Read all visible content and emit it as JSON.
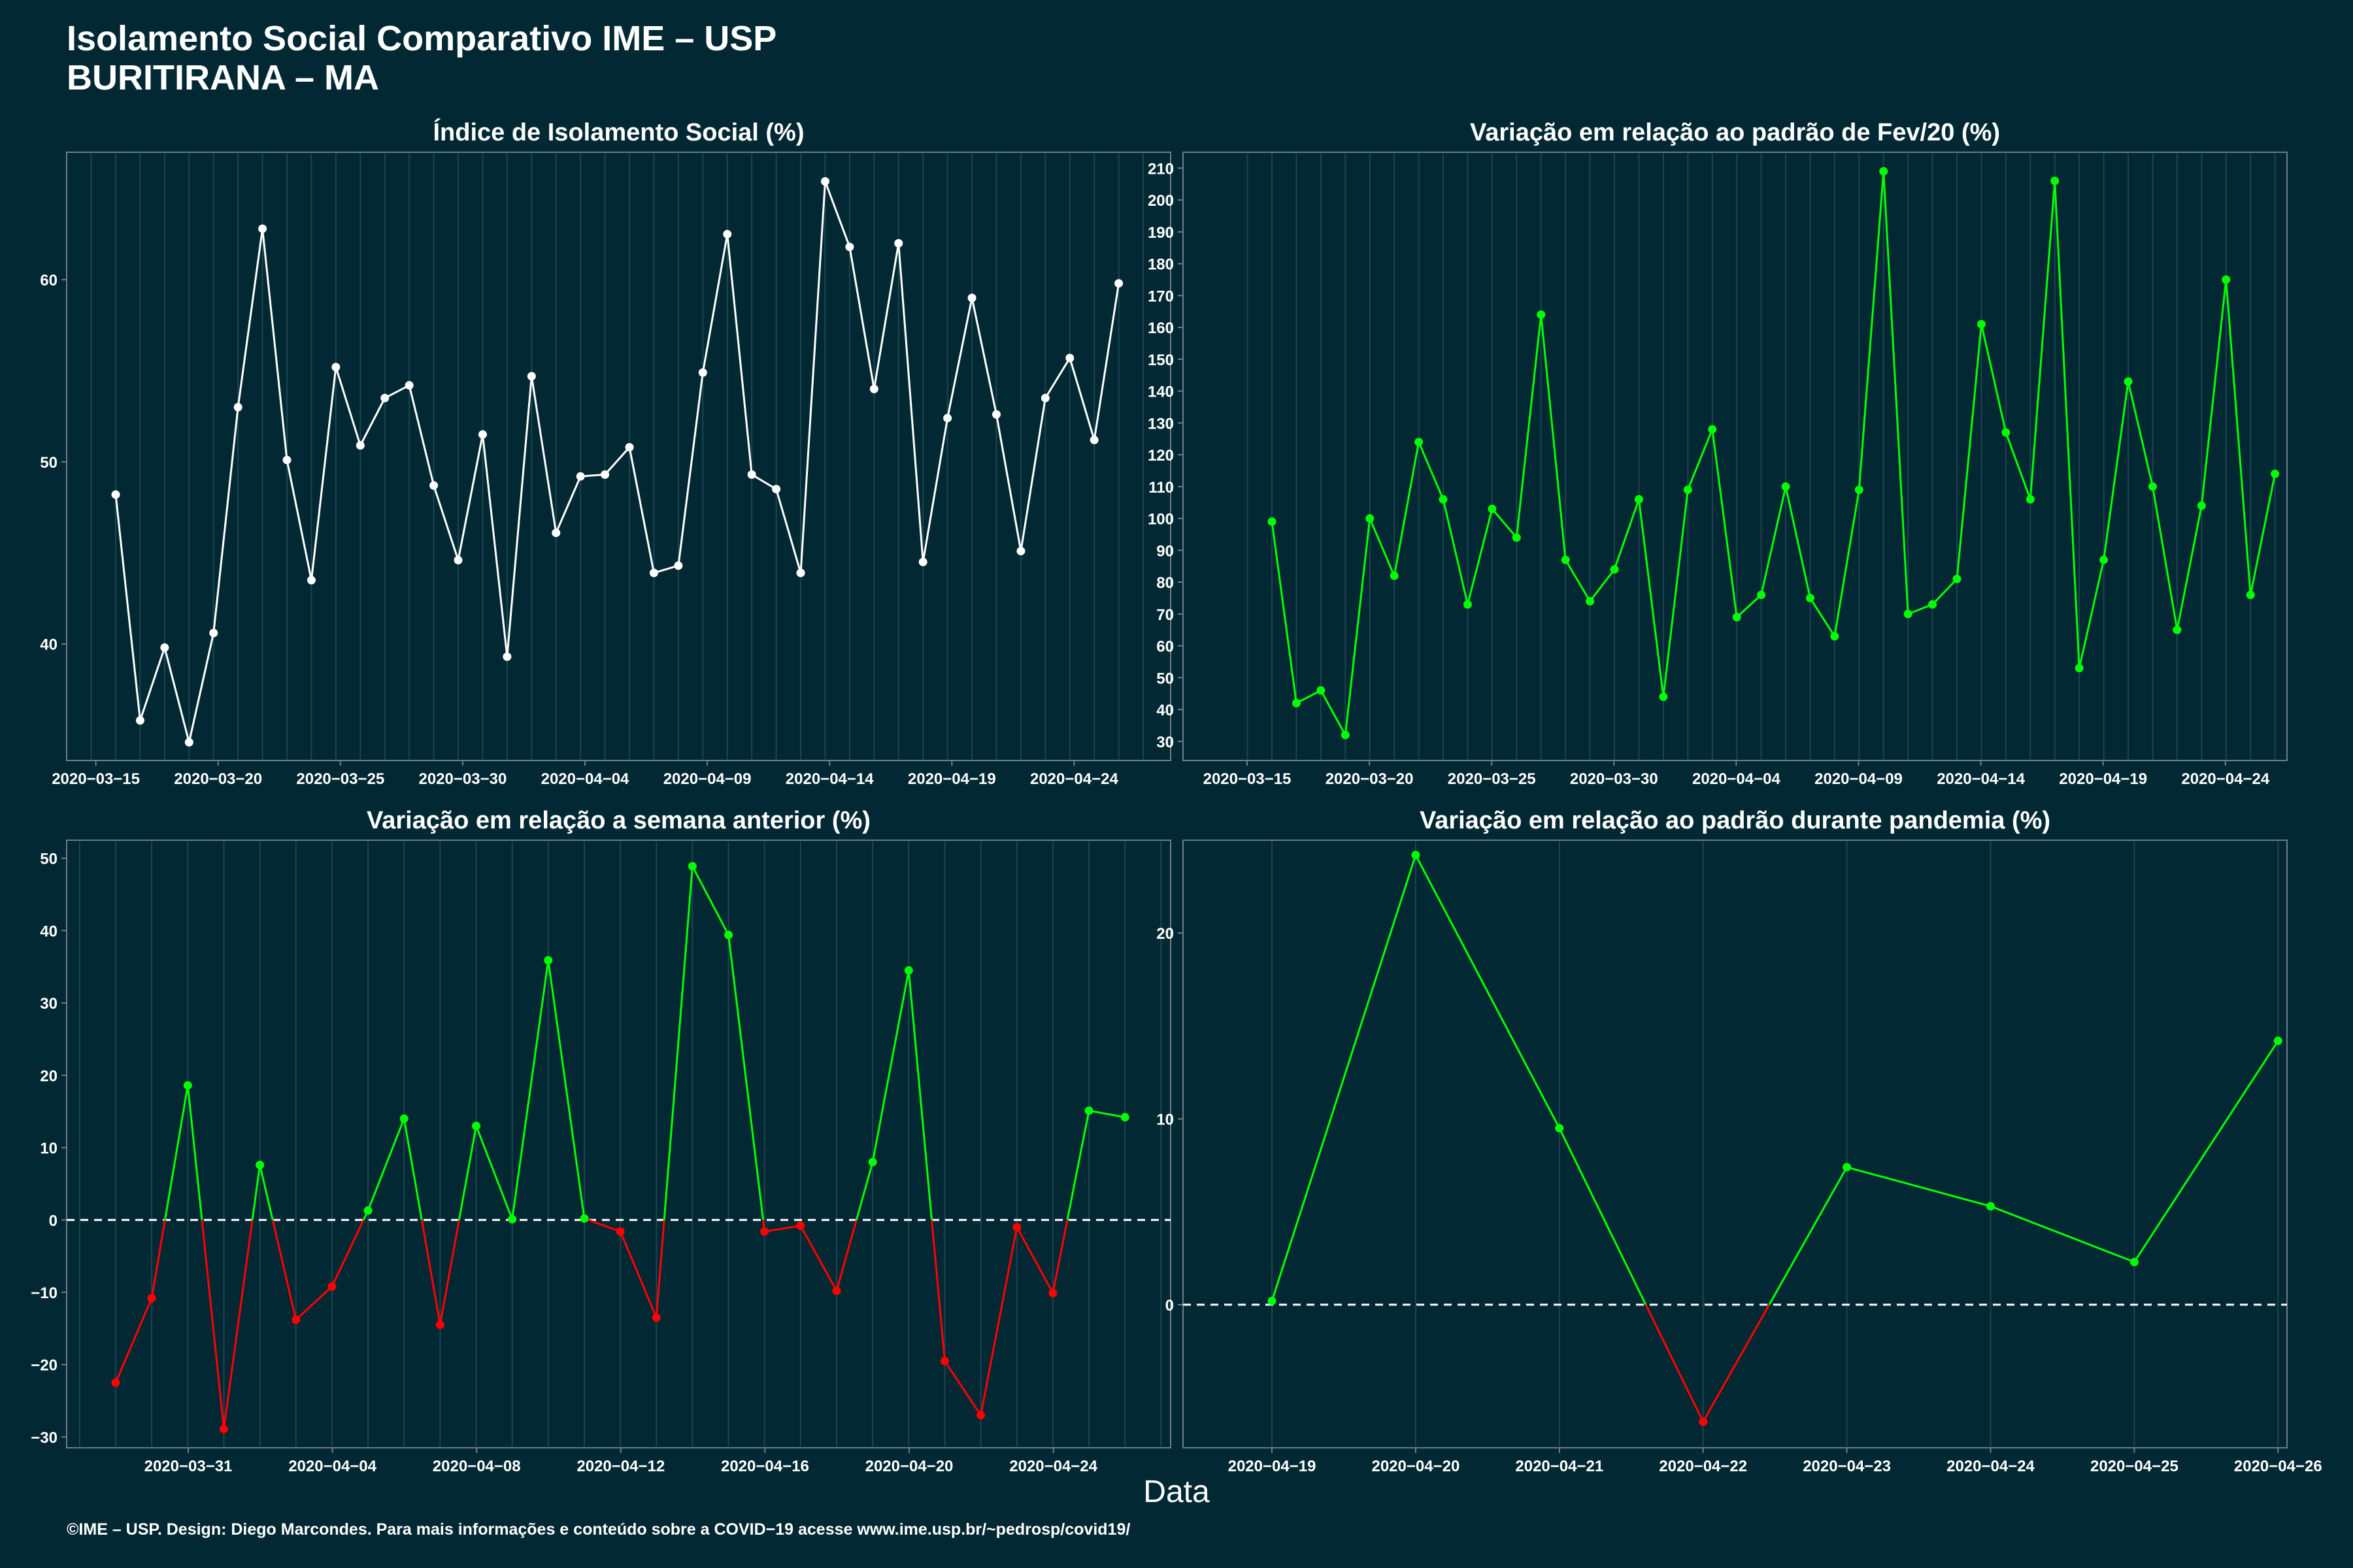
{
  "header": {
    "title": "Isolamento Social Comparativo IME – USP",
    "subtitle": "BURITIRANA – MA"
  },
  "footer": "©IME – USP. Design: Diego Marcondes. Para mais informações e conteúdo sobre a COVID−19 acesse www.ime.usp.br/~pedrosp/covid19/",
  "xlabel": "Data",
  "colors": {
    "background": "#012833",
    "panel_border": "#6e7f84",
    "grid": "#1d4651",
    "white": "#ffffff",
    "green": "#00ff00",
    "red": "#ff0000"
  },
  "chart_data": [
    {
      "id": "isolamento",
      "type": "line",
      "title": "Índice de Isolamento Social (%)",
      "x_start": "2020-03-17",
      "x_ticks": [
        "2020−03−15",
        "2020−03−20",
        "2020−03−25",
        "2020−03−30",
        "2020−04−04",
        "2020−04−09",
        "2020−04−14",
        "2020−04−19",
        "2020−04−24"
      ],
      "y_ticks": [
        "40",
        "50",
        "60"
      ],
      "ylim": [
        33.6,
        67
      ],
      "values": [
        48.2,
        35.8,
        39.8,
        34.6,
        40.6,
        53,
        62.8,
        50.1,
        43.5,
        55.2,
        50.9,
        53.5,
        54.2,
        48.7,
        44.6,
        51.5,
        39.3,
        54.7,
        46.1,
        49.2,
        49.3,
        50.8,
        43.9,
        44.3,
        54.9,
        62.5,
        49.3,
        48.5,
        43.9,
        65.4,
        61.8,
        54,
        62,
        44.5,
        52.4,
        59,
        52.6,
        45.1,
        53.5,
        55.7,
        51.2,
        59.8
      ],
      "color": "#ffffff"
    },
    {
      "id": "fev20",
      "type": "line",
      "title": "Variação em relação ao padrão de Fev/20 (%)",
      "x_start": "2020-03-17",
      "x_ticks": [
        "2020−03−15",
        "2020−03−20",
        "2020−03−25",
        "2020−03−30",
        "2020−04−04",
        "2020−04−09",
        "2020−04−14",
        "2020−04−19",
        "2020−04−24"
      ],
      "y_ticks": [
        "30",
        "40",
        "50",
        "60",
        "70",
        "80",
        "90",
        "100",
        "110",
        "120",
        "130",
        "140",
        "150",
        "160",
        "170",
        "180",
        "190",
        "200",
        "210"
      ],
      "ylim": [
        24,
        215
      ],
      "values": [
        99,
        42,
        46,
        32,
        100,
        82,
        124,
        106,
        73,
        103,
        94,
        164,
        87,
        74,
        84,
        106,
        44,
        109,
        128,
        69,
        76,
        110,
        75,
        63,
        109,
        209,
        70,
        73,
        81,
        161,
        127,
        106,
        206,
        53,
        87,
        143,
        110,
        65,
        104,
        175,
        76,
        114
      ],
      "color": "#00ff00"
    },
    {
      "id": "semana",
      "type": "line",
      "title": "Variação em relação a semana anterior (%)",
      "x_start": "2020-03-29",
      "x_ticks": [
        "2020−03−31",
        "2020−04−04",
        "2020−04−08",
        "2020−04−12",
        "2020−04−16",
        "2020−04−20",
        "2020−04−24"
      ],
      "y_ticks": [
        "−30",
        "−20",
        "−10",
        "0",
        "10",
        "20",
        "30",
        "40",
        "50"
      ],
      "ylim": [
        -31.5,
        52.5
      ],
      "values": [
        -22.5,
        -10.8,
        18.6,
        -28.9,
        7.6,
        -13.8,
        -9.2,
        1.3,
        14,
        -14.5,
        13,
        0.1,
        35.9,
        0.2,
        -1.6,
        -13.5,
        48.9,
        39.4,
        -1.6,
        -0.8,
        -9.8,
        8,
        34.5,
        -19.5,
        -27,
        -1,
        -10.1,
        15.1,
        14.2
      ],
      "colored_by_sign": true,
      "baseline": 0
    },
    {
      "id": "pandemia",
      "type": "line",
      "title": "Variação em relação ao padrão durante pandemia (%)",
      "x_start": "2020-04-19",
      "x_ticks": [
        "2020−04−19",
        "2020−04−20",
        "2020−04−21",
        "2020−04−22",
        "2020−04−23",
        "2020−04−24",
        "2020−04−25",
        "2020−04−26"
      ],
      "y_ticks": [
        "0",
        "10",
        "20"
      ],
      "ylim": [
        -7.7,
        25
      ],
      "values": [
        0.2,
        24.2,
        9.5,
        -6.3,
        7.4,
        5.3,
        2.3,
        14.2
      ],
      "colored_by_sign": true,
      "baseline": 0
    }
  ]
}
